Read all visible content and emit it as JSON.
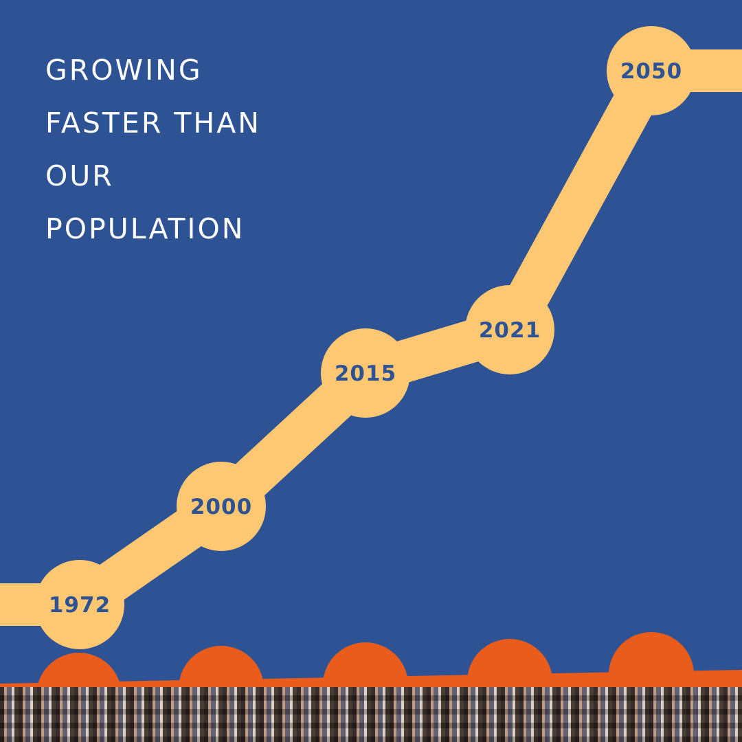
{
  "title_lines": [
    "GROWING",
    "FASTER THAN",
    "OUR",
    "POPULATION"
  ],
  "milestones": [
    "1972",
    "2000",
    "2015",
    "2021",
    "2050"
  ]
}
